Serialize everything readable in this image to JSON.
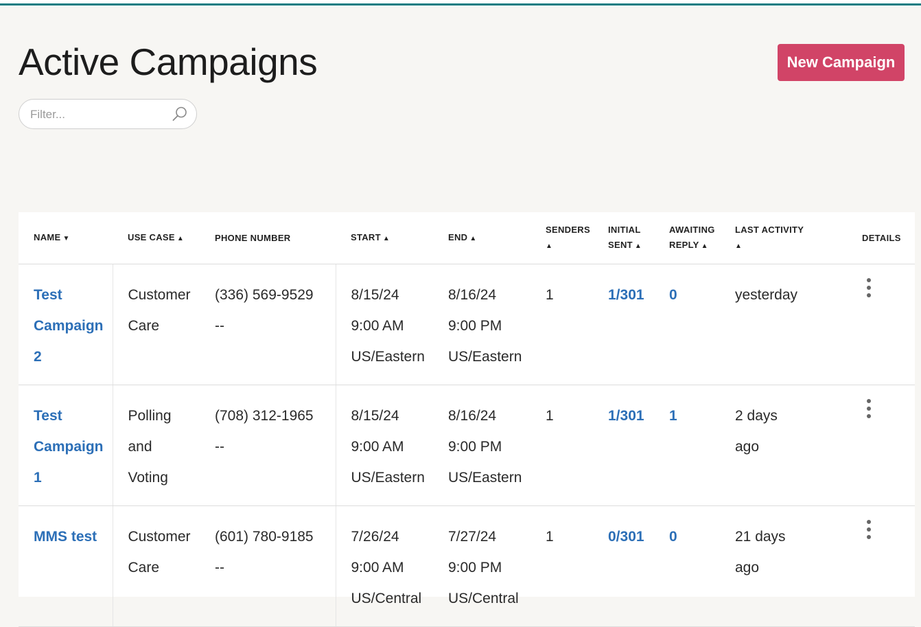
{
  "page": {
    "title": "Active Campaigns",
    "new_button": "New Campaign",
    "filter_placeholder": "Filter..."
  },
  "colors": {
    "accent_bar": "#117c82",
    "primary_button": "#d14467",
    "link": "#2c6fb7"
  },
  "table": {
    "headers": {
      "name": "NAME",
      "use_case": "USE CASE",
      "phone": "PHONE NUMBER",
      "start": "START",
      "end": "END",
      "senders": "SENDERS",
      "initial_sent_1": "INITIAL",
      "initial_sent_2": "SENT",
      "awaiting_1": "AWAITING",
      "awaiting_2": "REPLY",
      "last_activity": "LAST ACTIVITY",
      "details": "DETAILS"
    },
    "rows": [
      {
        "name": [
          "Test",
          "Campaign",
          "2"
        ],
        "use_case": [
          "Customer",
          "Care"
        ],
        "phone": [
          "(336) 569-9529",
          "--"
        ],
        "start": [
          "8/15/24",
          "9:00 AM",
          "US/Eastern"
        ],
        "end": [
          "8/16/24",
          "9:00 PM",
          "US/Eastern"
        ],
        "senders": "1",
        "initial_sent": "1/301",
        "awaiting": "0",
        "last_activity": [
          "yesterday"
        ]
      },
      {
        "name": [
          "Test",
          "Campaign",
          "1"
        ],
        "use_case": [
          "Polling",
          "and",
          "Voting"
        ],
        "phone": [
          "(708) 312-1965",
          "--"
        ],
        "start": [
          "8/15/24",
          "9:00 AM",
          "US/Eastern"
        ],
        "end": [
          "8/16/24",
          "9:00 PM",
          "US/Eastern"
        ],
        "senders": "1",
        "initial_sent": "1/301",
        "awaiting": "1",
        "last_activity": [
          "2 days",
          "ago"
        ]
      },
      {
        "name": [
          "MMS test"
        ],
        "use_case": [
          "Customer",
          "Care"
        ],
        "phone": [
          "(601) 780-9185",
          "--"
        ],
        "start": [
          "7/26/24",
          "9:00 AM",
          "US/Central"
        ],
        "end": [
          "7/27/24",
          "9:00 PM",
          "US/Central"
        ],
        "senders": "1",
        "initial_sent": "0/301",
        "awaiting": "0",
        "last_activity": [
          "21 days",
          "ago"
        ]
      }
    ]
  }
}
